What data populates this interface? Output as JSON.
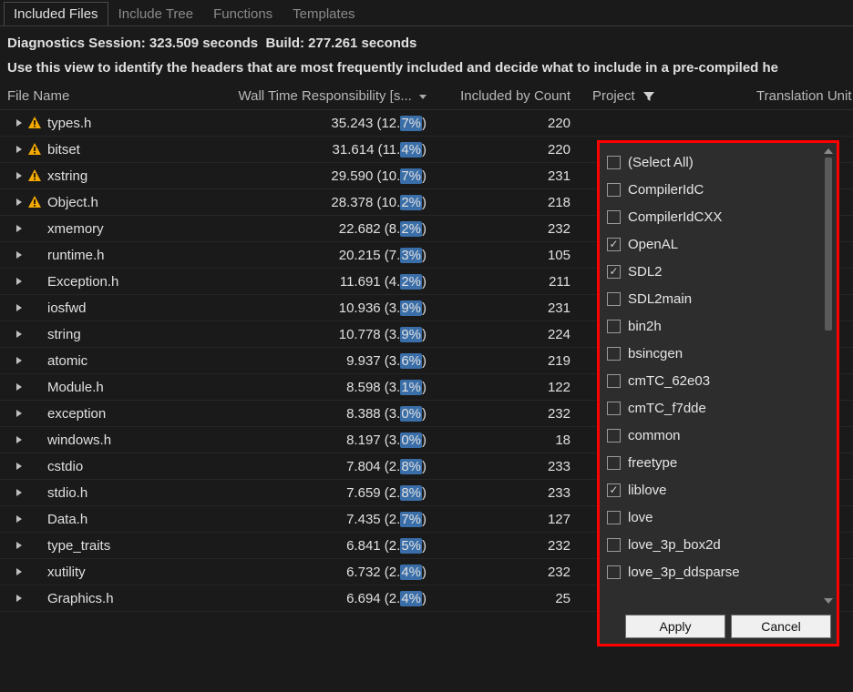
{
  "tabs": {
    "items": [
      "Included Files",
      "Include Tree",
      "Functions",
      "Templates"
    ],
    "active_index": 0
  },
  "session": {
    "label_prefix": "Diagnostics Session:",
    "session_seconds": "323.509 seconds",
    "build_prefix": "Build:",
    "build_seconds": "277.261 seconds"
  },
  "hint": "Use this view to identify the headers that are most frequently included and decide what to include in a pre-compiled he",
  "columns": {
    "file": "File Name",
    "wall": "Wall Time Responsibility [s...",
    "count": "Included by Count",
    "project": "Project",
    "tu": "Translation Unit"
  },
  "rows": [
    {
      "warn": true,
      "file": "types.h",
      "wall_a": "35.243 (12.",
      "wall_b": "7%",
      "wall_c": ")",
      "count": 220
    },
    {
      "warn": true,
      "file": "bitset",
      "wall_a": "31.614 (11.",
      "wall_b": "4%",
      "wall_c": ")",
      "count": 220
    },
    {
      "warn": true,
      "file": "xstring",
      "wall_a": "29.590 (10.",
      "wall_b": "7%",
      "wall_c": ")",
      "count": 231
    },
    {
      "warn": true,
      "file": "Object.h",
      "wall_a": "28.378 (10.",
      "wall_b": "2%",
      "wall_c": ")",
      "count": 218
    },
    {
      "warn": false,
      "file": "xmemory",
      "wall_a": "22.682 (8.",
      "wall_b": "2%",
      "wall_c": ")",
      "count": 232
    },
    {
      "warn": false,
      "file": "runtime.h",
      "wall_a": "20.215 (7.",
      "wall_b": "3%",
      "wall_c": ")",
      "count": 105
    },
    {
      "warn": false,
      "file": "Exception.h",
      "wall_a": "11.691 (4.",
      "wall_b": "2%",
      "wall_c": ")",
      "count": 211
    },
    {
      "warn": false,
      "file": "iosfwd",
      "wall_a": "10.936 (3.",
      "wall_b": "9%",
      "wall_c": ")",
      "count": 231
    },
    {
      "warn": false,
      "file": "string",
      "wall_a": "10.778 (3.",
      "wall_b": "9%",
      "wall_c": ")",
      "count": 224
    },
    {
      "warn": false,
      "file": "atomic",
      "wall_a": "9.937 (3.",
      "wall_b": "6%",
      "wall_c": ")",
      "count": 219
    },
    {
      "warn": false,
      "file": "Module.h",
      "wall_a": "8.598 (3.",
      "wall_b": "1%",
      "wall_c": ")",
      "count": 122
    },
    {
      "warn": false,
      "file": "exception",
      "wall_a": "8.388 (3.",
      "wall_b": "0%",
      "wall_c": ")",
      "count": 232
    },
    {
      "warn": false,
      "file": "windows.h",
      "wall_a": "8.197 (3.",
      "wall_b": "0%",
      "wall_c": ")",
      "count": 18
    },
    {
      "warn": false,
      "file": "cstdio",
      "wall_a": "7.804 (2.",
      "wall_b": "8%",
      "wall_c": ")",
      "count": 233
    },
    {
      "warn": false,
      "file": "stdio.h",
      "wall_a": "7.659 (2.",
      "wall_b": "8%",
      "wall_c": ")",
      "count": 233
    },
    {
      "warn": false,
      "file": "Data.h",
      "wall_a": "7.435 (2.",
      "wall_b": "7%",
      "wall_c": ")",
      "count": 127
    },
    {
      "warn": false,
      "file": "type_traits",
      "wall_a": "6.841 (2.",
      "wall_b": "5%",
      "wall_c": ")",
      "count": 232
    },
    {
      "warn": false,
      "file": "xutility",
      "wall_a": "6.732 (2.",
      "wall_b": "4%",
      "wall_c": ")",
      "count": 232
    },
    {
      "warn": false,
      "file": "Graphics.h",
      "wall_a": "6.694 (2.",
      "wall_b": "4%",
      "wall_c": ")",
      "count": 25
    }
  ],
  "filter": {
    "items": [
      {
        "label": "(Select All)",
        "checked": false
      },
      {
        "label": "CompilerIdC",
        "checked": false
      },
      {
        "label": "CompilerIdCXX",
        "checked": false
      },
      {
        "label": "OpenAL",
        "checked": true
      },
      {
        "label": "SDL2",
        "checked": true
      },
      {
        "label": "SDL2main",
        "checked": false
      },
      {
        "label": "bin2h",
        "checked": false
      },
      {
        "label": "bsincgen",
        "checked": false
      },
      {
        "label": "cmTC_62e03",
        "checked": false
      },
      {
        "label": "cmTC_f7dde",
        "checked": false
      },
      {
        "label": "common",
        "checked": false
      },
      {
        "label": "freetype",
        "checked": false
      },
      {
        "label": "liblove",
        "checked": true
      },
      {
        "label": "love",
        "checked": false
      },
      {
        "label": "love_3p_box2d",
        "checked": false
      },
      {
        "label": "love_3p_ddsparse",
        "checked": false
      }
    ],
    "apply": "Apply",
    "cancel": "Cancel"
  },
  "colors": {
    "bg": "#1a1a1a",
    "popup_bg": "#2d2d2d",
    "popup_border": "#ff0000",
    "highlight": "#3a6ea8",
    "warn_fill": "#f2a900",
    "warn_bang": "#000000",
    "text": "#e0e0e0",
    "muted": "#8a8a8a"
  }
}
